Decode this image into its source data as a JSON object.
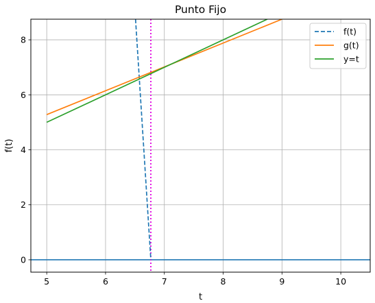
{
  "chart_data": {
    "type": "line",
    "title": "Punto Fijo",
    "xlabel": "t",
    "ylabel": "f(t)",
    "xlim": [
      4.73,
      10.5
    ],
    "ylim": [
      -0.45,
      8.75
    ],
    "xticks": [
      "5",
      "6",
      "7",
      "8",
      "9",
      "10"
    ],
    "yticks": [
      "0",
      "2",
      "4",
      "6",
      "8"
    ],
    "grid": true,
    "legend_position": "top-right",
    "series": [
      {
        "name": "f(t)",
        "style": "dashed",
        "color": "#1f77b4",
        "x": [
          6.51,
          6.77
        ],
        "y": [
          8.75,
          0.0
        ]
      },
      {
        "name": "g(t)",
        "style": "solid",
        "color": "#ff7f0e",
        "x": [
          5.0,
          9.0
        ],
        "y": [
          5.28,
          8.75
        ]
      },
      {
        "name": "y=t",
        "style": "solid",
        "color": "#2ca02c",
        "x": [
          5.0,
          8.75
        ],
        "y": [
          5.0,
          8.75
        ]
      }
    ],
    "reference_lines": [
      {
        "orientation": "horizontal",
        "value": 0,
        "style": "solid",
        "color": "#1f77b4"
      },
      {
        "orientation": "vertical",
        "value": 6.77,
        "style": "dotted",
        "color": "#e000e0"
      }
    ]
  }
}
